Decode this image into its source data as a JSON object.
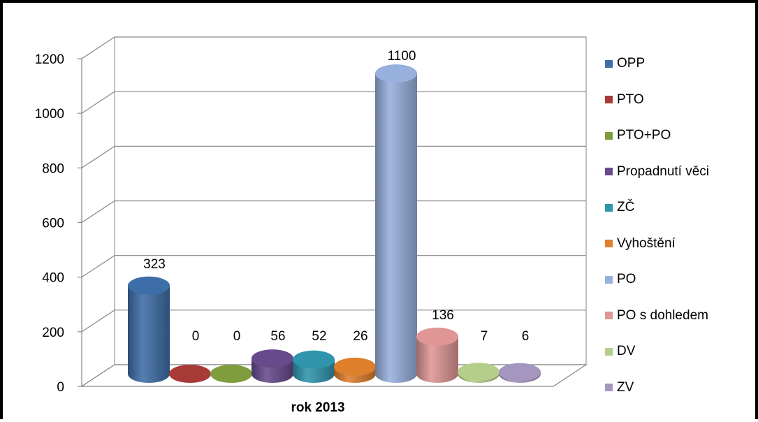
{
  "chart_data": {
    "type": "bar",
    "variant": "3d-cylinder",
    "categories": [
      "rok 2013"
    ],
    "xlabel": "rok 2013",
    "ylim": [
      0,
      1200
    ],
    "yticks": [
      0,
      200,
      400,
      600,
      800,
      1000,
      1200
    ],
    "grid": true,
    "legend_position": "right",
    "series": [
      {
        "name": "OPP",
        "values": [
          323
        ],
        "color": "#3e6ea8"
      },
      {
        "name": "PTO",
        "values": [
          0
        ],
        "color": "#a83a37"
      },
      {
        "name": "PTO+PO",
        "values": [
          0
        ],
        "color": "#7f9d3c"
      },
      {
        "name": "Propadnutí věci",
        "values": [
          56
        ],
        "color": "#664a8c"
      },
      {
        "name": "ZČ",
        "values": [
          52
        ],
        "color": "#2f95ad"
      },
      {
        "name": "Vyhoštění",
        "values": [
          26
        ],
        "color": "#de7f2c"
      },
      {
        "name": "PO",
        "values": [
          1100
        ],
        "color": "#98b0dd"
      },
      {
        "name": "PO s dohledem",
        "values": [
          136
        ],
        "color": "#df9695"
      },
      {
        "name": "DV",
        "values": [
          7
        ],
        "color": "#b5cf8a"
      },
      {
        "name": "ZV",
        "values": [
          6
        ],
        "color": "#a596bf"
      }
    ]
  }
}
